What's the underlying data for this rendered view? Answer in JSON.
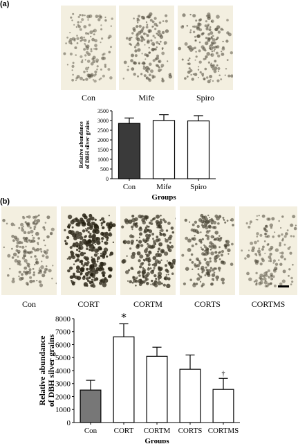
{
  "panel_a": {
    "label": "(a)",
    "images": [
      {
        "label": "Con",
        "density": 0.35
      },
      {
        "label": "Mife",
        "density": 0.45
      },
      {
        "label": "Spiro",
        "density": 0.45
      }
    ]
  },
  "panel_b": {
    "label": "(b)",
    "images": [
      {
        "label": "Con",
        "density": 0.45
      },
      {
        "label": "CORT",
        "density": 1.0
      },
      {
        "label": "CORTM",
        "density": 0.8
      },
      {
        "label": "CORTS",
        "density": 0.6
      },
      {
        "label": "CORTMS",
        "density": 0.4
      }
    ]
  },
  "chart_data": [
    {
      "type": "bar",
      "title": "",
      "xlabel": "Groups",
      "ylabel": "Relative abundance of DBH silver grains",
      "ylabel_lines": [
        "Relative abundance",
        "of DBH silver grains"
      ],
      "categories": [
        "Con",
        "Mife",
        "Spiro"
      ],
      "values": [
        2850,
        3000,
        2980
      ],
      "errors": [
        280,
        300,
        270
      ],
      "colors": [
        "#3a3a3a",
        "#ffffff",
        "#ffffff"
      ],
      "ylim": [
        0,
        3500
      ],
      "yticks": [
        "0",
        "500",
        "1000",
        "1500",
        "2000",
        "2500",
        "3000",
        "3500"
      ],
      "annotations": [
        "",
        "",
        ""
      ]
    },
    {
      "type": "bar",
      "title": "",
      "xlabel": "Groups",
      "ylabel": "Relative abundance of DBH silver grains",
      "ylabel_lines": [
        "Relative abundance",
        "of DBH silver grains"
      ],
      "categories": [
        "Con",
        "CORT",
        "CORTM",
        "CORTS",
        "CORTMS"
      ],
      "values": [
        2500,
        6600,
        5100,
        4100,
        2550
      ],
      "errors": [
        750,
        1000,
        700,
        1100,
        850
      ],
      "colors": [
        "#777777",
        "#ffffff",
        "#ffffff",
        "#ffffff",
        "#ffffff"
      ],
      "ylim": [
        0,
        8000
      ],
      "yticks": [
        "0",
        "1000",
        "2000",
        "3000",
        "4000",
        "5000",
        "6000",
        "7000",
        "8000"
      ],
      "annotations": [
        "",
        "*",
        "",
        "",
        "†"
      ]
    }
  ]
}
